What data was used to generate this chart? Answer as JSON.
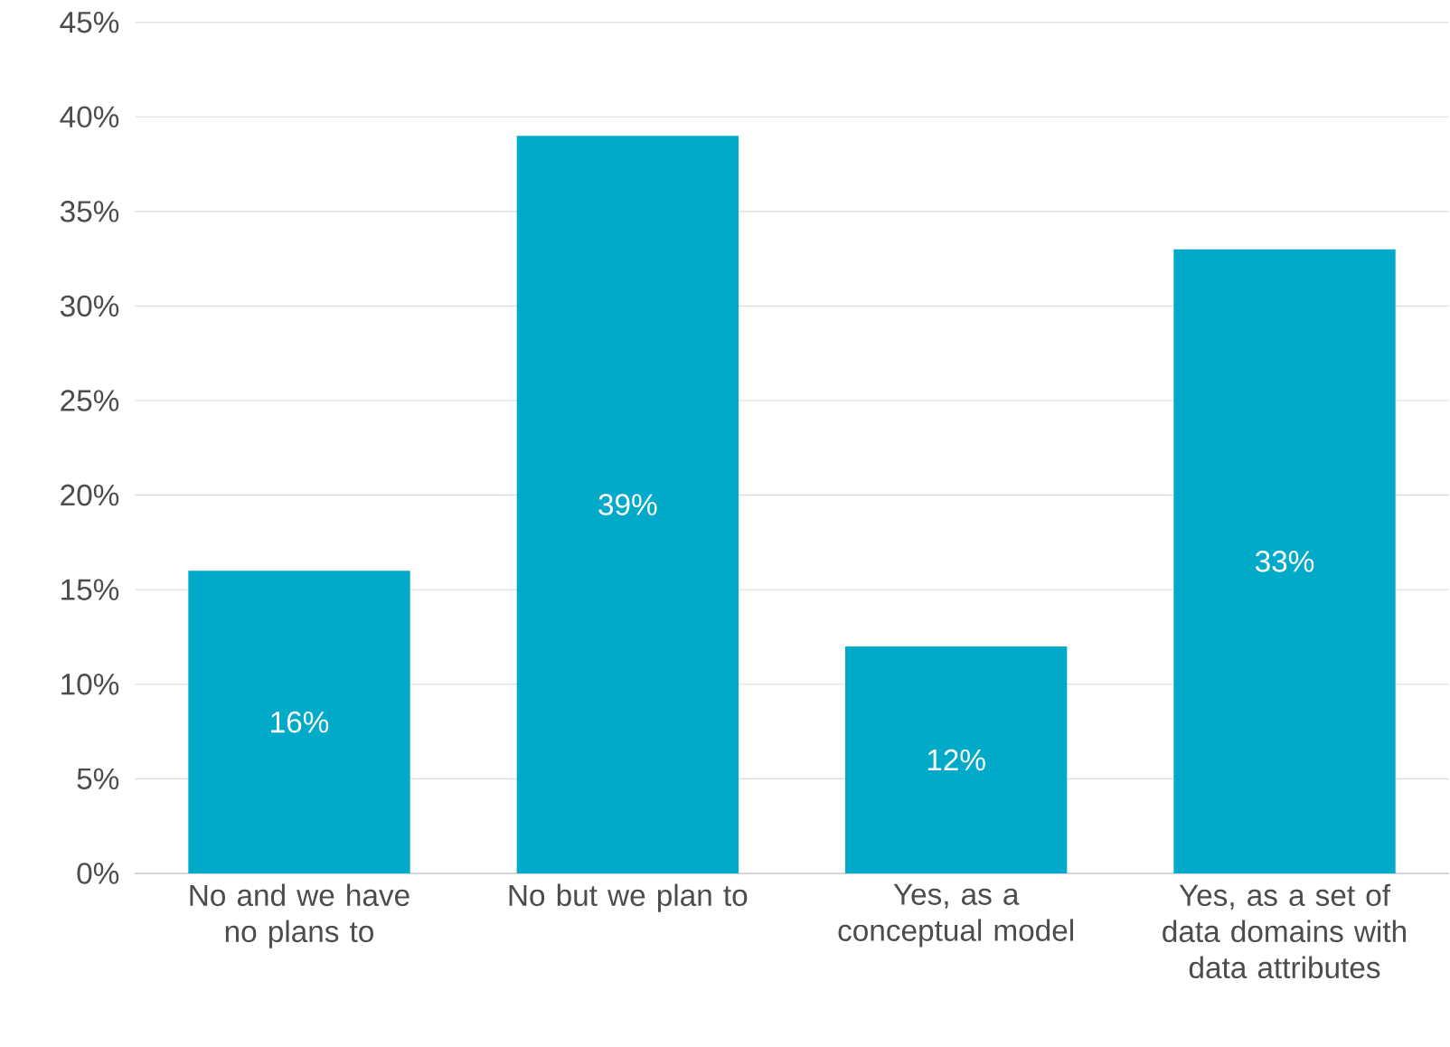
{
  "chart_data": {
    "type": "bar",
    "categories": [
      "No and we have no plans to",
      "No but we plan to",
      "Yes, as a conceptual model",
      "Yes, as a set of data domains with data attributes"
    ],
    "values": [
      16,
      39,
      12,
      33
    ],
    "value_labels": [
      "16%",
      "39%",
      "12%",
      "33%"
    ],
    "color": "#00aac8",
    "ylim": [
      0,
      45
    ],
    "yticks": [
      {
        "value": 0,
        "label": "0%"
      },
      {
        "value": 5,
        "label": "5%"
      },
      {
        "value": 10,
        "label": "10%"
      },
      {
        "value": 15,
        "label": "15%"
      },
      {
        "value": 20,
        "label": "20%"
      },
      {
        "value": 25,
        "label": "25%"
      },
      {
        "value": 30,
        "label": "30%"
      },
      {
        "value": 35,
        "label": "35%"
      },
      {
        "value": 40,
        "label": "40%"
      },
      {
        "value": 45,
        "label": "45%"
      }
    ],
    "grid": "y"
  }
}
